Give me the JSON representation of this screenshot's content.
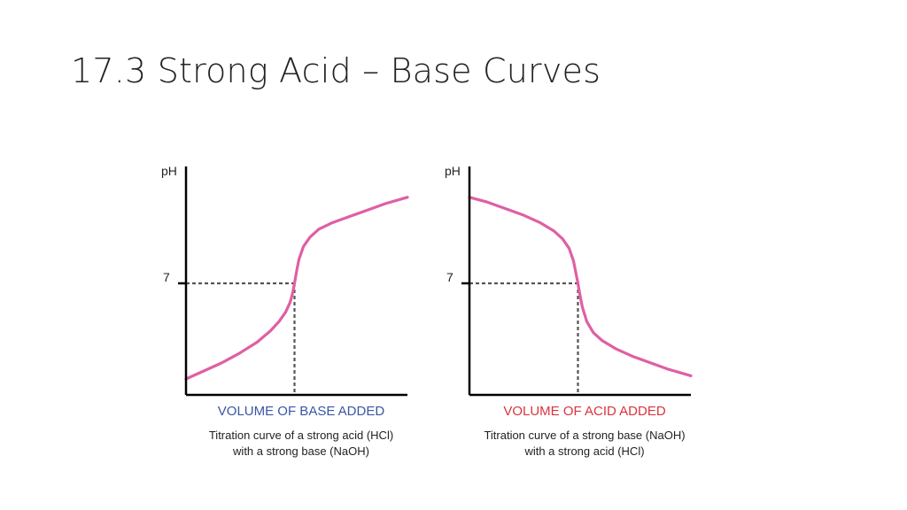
{
  "slide": {
    "title": "17.3 Strong Acid – Base Curves"
  },
  "colors": {
    "curve": "#df5fa4",
    "axis": "#000000",
    "guide": "#555555",
    "base_label": "#3a56a6",
    "acid_label": "#d8343f"
  },
  "chart_data": [
    {
      "type": "line",
      "title": "",
      "ylabel": "pH",
      "xlabel": "VOLUME OF BASE ADDED",
      "caption_lines": [
        "Titration curve of a strong acid (HCl)",
        "with a strong base (NaOH)"
      ],
      "y_ticks": [
        {
          "value": 7,
          "label": "7"
        }
      ],
      "equivalence": {
        "x": 0.49,
        "y": 7
      },
      "ylim": [
        0,
        14
      ],
      "xlim": [
        0,
        1
      ],
      "grid": false,
      "series": [
        {
          "x": [
            0.0,
            0.08,
            0.16,
            0.24,
            0.32,
            0.38,
            0.42,
            0.45,
            0.47,
            0.48,
            0.49,
            0.5,
            0.51,
            0.53,
            0.56,
            0.6,
            0.66,
            0.74,
            0.82,
            0.9,
            1.0
          ],
          "y": [
            1.0,
            1.5,
            2.0,
            2.6,
            3.3,
            4.0,
            4.6,
            5.2,
            5.8,
            6.3,
            7.0,
            7.8,
            8.5,
            9.3,
            9.9,
            10.4,
            10.8,
            11.2,
            11.6,
            12.0,
            12.4
          ]
        }
      ]
    },
    {
      "type": "line",
      "title": "",
      "ylabel": "pH",
      "xlabel": "VOLUME OF ACID ADDED",
      "caption_lines": [
        "Titration curve of a strong base (NaOH)",
        "with a strong acid (HCl)"
      ],
      "y_ticks": [
        {
          "value": 7,
          "label": "7"
        }
      ],
      "equivalence": {
        "x": 0.49,
        "y": 7
      },
      "ylim": [
        0,
        14
      ],
      "xlim": [
        0,
        1
      ],
      "grid": false,
      "series": [
        {
          "x": [
            0.0,
            0.08,
            0.16,
            0.24,
            0.32,
            0.38,
            0.42,
            0.45,
            0.47,
            0.48,
            0.49,
            0.5,
            0.51,
            0.53,
            0.56,
            0.6,
            0.66,
            0.74,
            0.82,
            0.9,
            1.0
          ],
          "y": [
            12.4,
            12.1,
            11.7,
            11.3,
            10.8,
            10.3,
            9.8,
            9.2,
            8.4,
            7.7,
            7.0,
            6.2,
            5.5,
            4.6,
            3.9,
            3.4,
            2.9,
            2.4,
            2.0,
            1.6,
            1.2
          ]
        }
      ]
    }
  ]
}
